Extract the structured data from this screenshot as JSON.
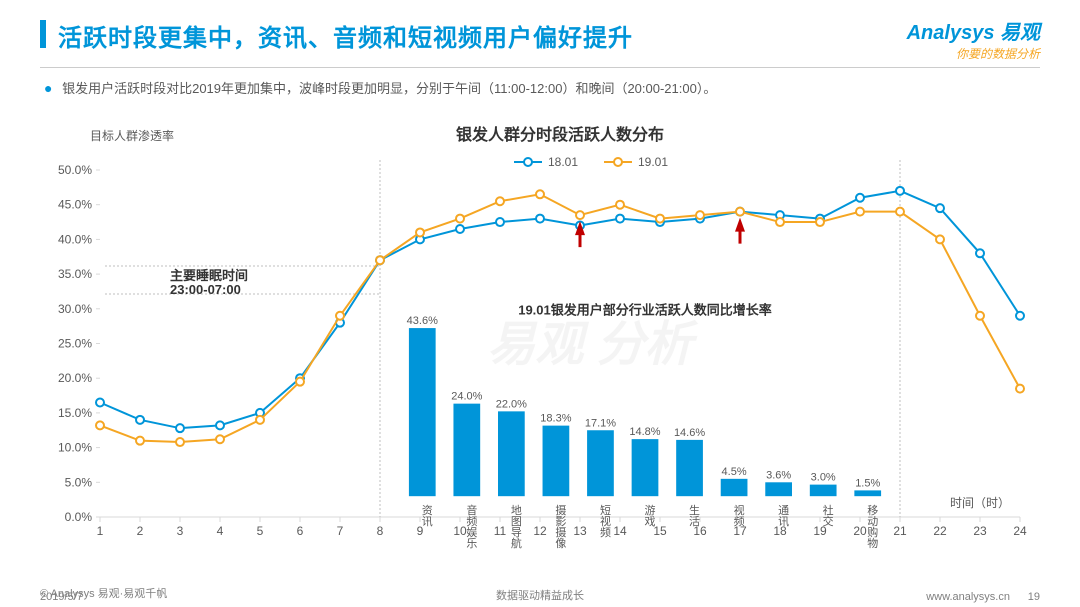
{
  "header": {
    "title": "活跃时段更集中，资讯、音频和短视频用户偏好提升",
    "brand_main": "Analysys 易观",
    "brand_sub": "你要的数据分析"
  },
  "bullet": {
    "text": "银发用户活跃时段对比2019年更加集中，波峰时段更加明显，分别于午间（11:00-12:00）和晚间（20:00-21:00）。"
  },
  "line_chart": {
    "type": "line",
    "title": "银发人群分时段活跃人数分布",
    "y_label": "目标人群渗透率",
    "x_label": "时间（时）",
    "x_ticks": [
      1,
      2,
      3,
      4,
      5,
      6,
      7,
      8,
      9,
      10,
      11,
      12,
      13,
      14,
      15,
      16,
      17,
      18,
      19,
      20,
      21,
      22,
      23,
      24
    ],
    "y_ticks": [
      "0.0%",
      "5.0%",
      "10.0%",
      "15.0%",
      "20.0%",
      "25.0%",
      "30.0%",
      "35.0%",
      "40.0%",
      "45.0%",
      "50.0%"
    ],
    "ylim": [
      0,
      50
    ],
    "ytick_step": 5,
    "legend": [
      "18.01",
      "19.01"
    ],
    "series": {
      "18.01": [
        16.5,
        14.0,
        12.8,
        13.2,
        15.0,
        20.0,
        28.0,
        37.0,
        40.0,
        41.5,
        42.5,
        43.0,
        42.0,
        43.0,
        42.5,
        43.0,
        44.0,
        43.5,
        43.0,
        46.0,
        47.0,
        44.5,
        38.0,
        29.0
      ],
      "19.01": [
        13.2,
        11.0,
        10.8,
        11.2,
        14.0,
        19.5,
        29.0,
        37.0,
        41.0,
        43.0,
        45.5,
        46.5,
        43.5,
        45.0,
        43.0,
        43.5,
        44.0,
        42.5,
        42.5,
        44.0,
        44.0,
        40.0,
        29.0,
        18.5
      ]
    },
    "colors": {
      "18.01": "#0095d9",
      "19.01": "#f5a623"
    },
    "marker": "circle-open",
    "marker_size": 4,
    "arrows_at_x": [
      13,
      17
    ],
    "vline_at_x": [
      8,
      21
    ],
    "background_color": "#ffffff",
    "grid_color": "#d9d9d9",
    "sleep_annotation": {
      "line1": "主要睡眠时间",
      "line2": "23:00-07:00"
    }
  },
  "bar_chart": {
    "type": "bar",
    "title": "19.01银发用户部分行业活跃人数同比增长率",
    "categories": [
      "资讯",
      "音频娱乐",
      "地图导航",
      "摄影摄像",
      "短视频",
      "游戏",
      "生活",
      "视频",
      "通讯",
      "社交",
      "移动购物"
    ],
    "values": [
      43.6,
      24.0,
      22.0,
      18.3,
      17.1,
      14.8,
      14.6,
      4.5,
      3.6,
      3.0,
      1.5
    ],
    "value_labels": [
      "43.6%",
      "24.0%",
      "22.0%",
      "18.3%",
      "17.1%",
      "14.8%",
      "14.6%",
      "4.5%",
      "3.6%",
      "3.0%",
      "1.5%"
    ],
    "bar_color": "#0095d9",
    "ylim": [
      0,
      45
    ]
  },
  "footer": {
    "source": "© Analysys 易观·易观千帆",
    "date": "2019/5/7",
    "center": "数据驱动精益成长",
    "url": "www.analysys.cn",
    "page": "19"
  },
  "watermark": "易观 分析"
}
